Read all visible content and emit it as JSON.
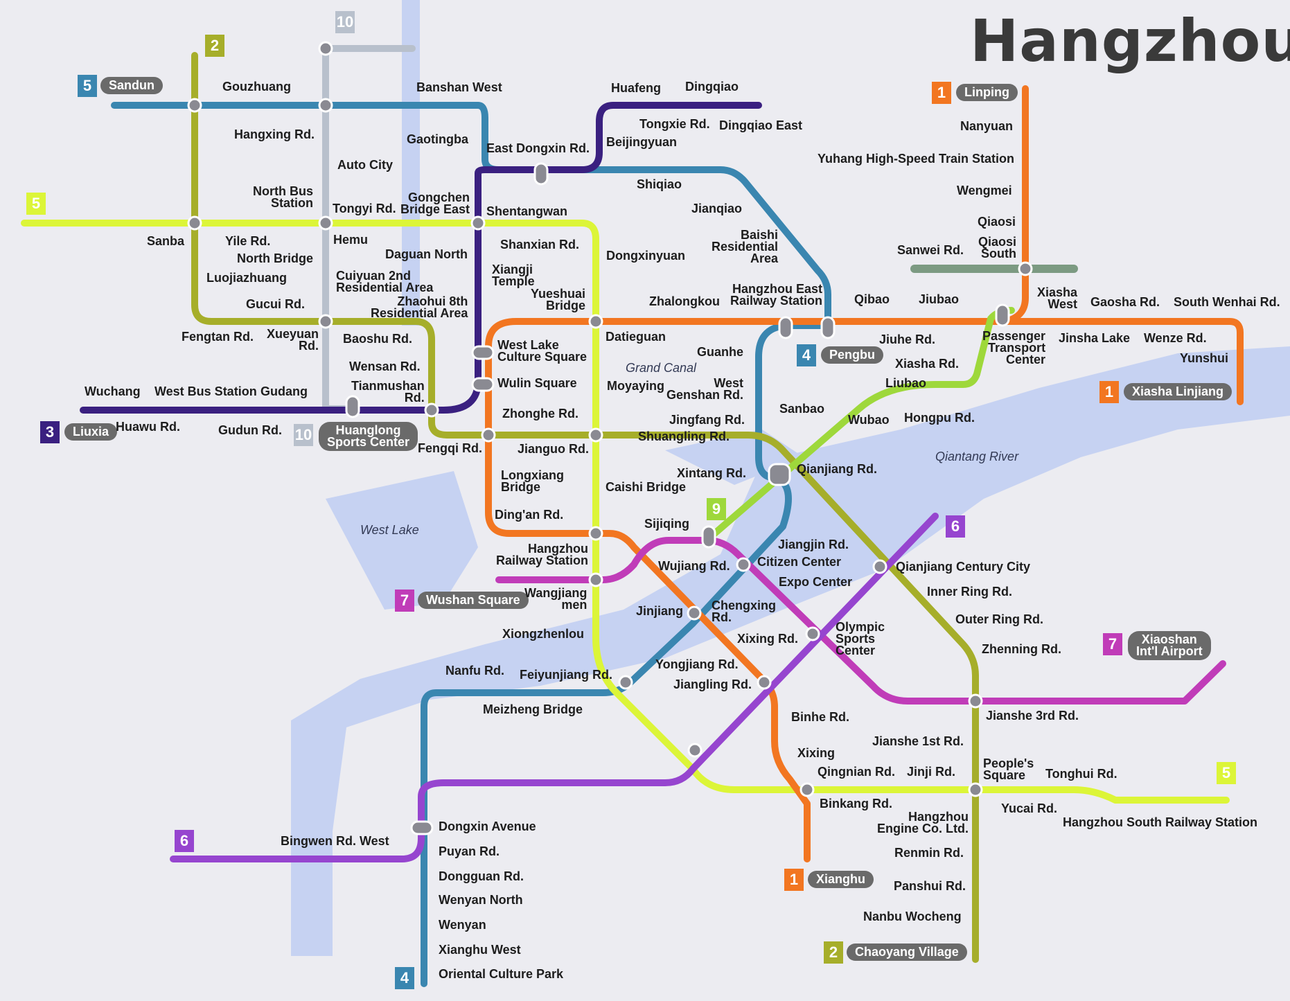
{
  "title": "Hangzhou",
  "lines": [
    {
      "id": "1",
      "color": "#f27621"
    },
    {
      "id": "2",
      "color": "#a6ae2a"
    },
    {
      "id": "3",
      "color": "#3a2080"
    },
    {
      "id": "4",
      "color": "#3a86b0"
    },
    {
      "id": "5",
      "color": "#dcf538"
    },
    {
      "id": "6",
      "color": "#9645cf"
    },
    {
      "id": "7",
      "color": "#c03cb8"
    },
    {
      "id": "9",
      "color": "#9ed83b"
    },
    {
      "id": "10",
      "color": "#b8c0cc"
    }
  ],
  "terminals": {
    "sandun": "Sandun",
    "linping": "Linping",
    "liuxia": "Liuxia",
    "huanglong": "Huanglong\nSports Center",
    "pengbu": "Pengbu",
    "xiasha_linjiang": "Xiasha Linjiang",
    "wushan_square": "Wushan Square",
    "xiaoshan_airport": "Xiaoshan\nInt'l Airport",
    "xianghu": "Xianghu",
    "chaoyang_village": "Chaoyang Village"
  },
  "stations": {
    "gouzhuang": "Gouzhuang",
    "banshan_west": "Banshan West",
    "huafeng": "Huafeng",
    "dingqiao": "Dingqiao",
    "tongxie": "Tongxie Rd.",
    "dingqiao_east": "Dingqiao East",
    "hangxing": "Hangxing Rd.",
    "gaotingba": "Gaotingba",
    "east_dongxin": "East Dongxin Rd.",
    "beijingyuan": "Beijingyuan",
    "auto_city": "Auto City",
    "shiqiao": "Shiqiao",
    "north_bus": "North Bus\nStation",
    "gongchen": "Gongchen\nBridge East",
    "tongyi": "Tongyi Rd.",
    "shentangwan": "Shentangwan",
    "jianqiao": "Jianqiao",
    "sanba": "Sanba",
    "yile": "Yile Rd.",
    "hemu": "Hemu",
    "daguan_north": "Daguan North",
    "shanxian": "Shanxian Rd.",
    "dongxinyuan": "Dongxinyuan",
    "baishi": "Baishi\nResidential\nArea",
    "north_bridge": "North Bridge",
    "xiangji": "Xiangji\nTemple",
    "luojiazhuang": "Luojiazhuang",
    "cuiyuan": "Cuiyuan 2nd\nResidential Area",
    "yueshuai": "Yueshuai\nBridge",
    "zhaohui": "Zhaohui 8th\nResidential Area",
    "zhalongkou": "Zhalongkou",
    "hz_east": "Hangzhou East\nRailway Station",
    "gucui": "Gucui Rd.",
    "fengtan": "Fengtan Rd.",
    "xueyuan": "Xueyuan\nRd.",
    "baoshu": "Baoshu Rd.",
    "datieguan": "Datieguan",
    "westlake_culture": "West Lake\nCulture Square",
    "wensan": "Wensan Rd.",
    "grand_canal": "Grand Canal",
    "guanhe": "Guanhe",
    "wuchang": "Wuchang",
    "west_bus": "West Bus Station",
    "gudang": "Gudang",
    "tianmushan": "Tianmushan\nRd.",
    "wulin": "Wulin Square",
    "moyaying": "Moyaying",
    "west_genshan": "West\nGenshan Rd.",
    "huawu": "Huawu Rd.",
    "gudun": "Gudun Rd.",
    "zhonghe": "Zhonghe Rd.",
    "fengqi": "Fengqi Rd.",
    "jianguo": "Jianguo Rd.",
    "jingfang": "Jingfang Rd.",
    "shuangling": "Shuangling Rd.",
    "sanbao": "Sanbao",
    "wubao": "Wubao",
    "hongpu": "Hongpu Rd.",
    "longxiang": "Longxiang\nBridge",
    "caishi": "Caishi Bridge",
    "xintang": "Xintang Rd.",
    "qianjiang": "Qianjiang Rd.",
    "qiantang_river": "Qiantang River",
    "west_lake": "West Lake",
    "dingan": "Ding'an Rd.",
    "sijiqing": "Sijiqing",
    "jiangjin": "Jiangjin Rd.",
    "citizen_center": "Citizen Center",
    "hz_railway": "Hangzhou\nRailway Station",
    "wujiang": "Wujiang Rd.",
    "qianjiang_century": "Qianjiang Century City",
    "expo_center": "Expo Center",
    "wangjiang": "Wangjiang\nmen",
    "inner_ring": "Inner Ring Rd.",
    "jinjiang": "Jinjiang",
    "chengxing": "Chengxing\nRd.",
    "outer_ring": "Outer Ring Rd.",
    "xiongzhenlou": "Xiongzhenlou",
    "olympic": "Olympic\nSports\nCenter",
    "xixing": "Xixing Rd.",
    "zhenning": "Zhenning Rd.",
    "nanfu": "Nanfu Rd.",
    "feiyunjiang": "Feiyunjiang Rd.",
    "yongjiang": "Yongjiang Rd.",
    "jiangling": "Jiangling Rd.",
    "meizheng": "Meizheng Bridge",
    "binhe": "Binhe Rd.",
    "jianshe3": "Jianshe 3rd Rd.",
    "xixing_st": "Xixing",
    "jianshe1": "Jianshe 1st Rd.",
    "qingnian": "Qingnian Rd.",
    "jinji": "Jinji Rd.",
    "peoples_square": "People's\nSquare",
    "tonghui": "Tonghui Rd.",
    "binkang": "Binkang Rd.",
    "yucai": "Yucai Rd.",
    "hz_engine": "Hangzhou\nEngine Co. Ltd.",
    "hz_south": "Hangzhou South Railway Station",
    "dongxin_avenue": "Dongxin Avenue",
    "bingwen": "Bingwen Rd. West",
    "puyan": "Puyan Rd.",
    "renmin": "Renmin Rd.",
    "dongguan": "Dongguan Rd.",
    "panshui": "Panshui Rd.",
    "wenyan_north": "Wenyan North",
    "nanbu": "Nanbu Wocheng",
    "wenyan": "Wenyan",
    "xianghu_west": "Xianghu West",
    "oriental": "Oriental Culture Park",
    "nanyuan": "Nanyuan",
    "yuhang": "Yuhang High-Speed Train Station",
    "wengmei": "Wengmei",
    "qiaosi": "Qiaosi",
    "qiaosi_south": "Qiaosi\nSouth",
    "sanwei": "Sanwei Rd.",
    "qibao": "Qibao",
    "jiubao": "Jiubao",
    "xiasha_west": "Xiasha\nWest",
    "gaosha": "Gaosha Rd.",
    "south_wenhai": "South Wenhai Rd.",
    "jiuhe": "Jiuhe Rd.",
    "ptc": "Passenger\nTransport\nCenter",
    "jinsha": "Jinsha Lake",
    "wenze": "Wenze Rd.",
    "xiasha_rd": "Xiasha Rd.",
    "yunshui": "Yunshui",
    "liubao": "Liubao"
  }
}
